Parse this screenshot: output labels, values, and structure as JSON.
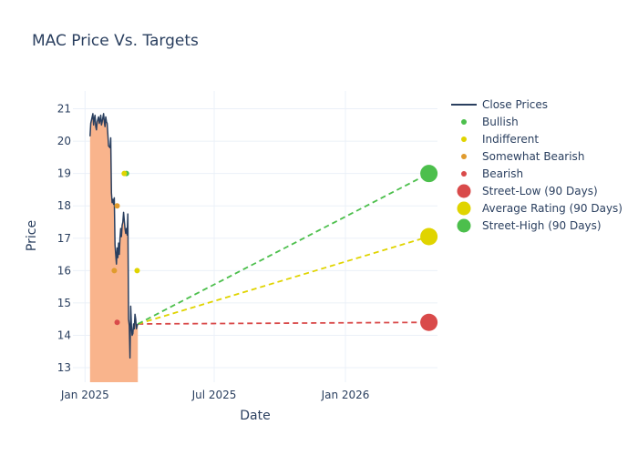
{
  "chart_data": {
    "type": "line",
    "title": "MAC Price Vs. Targets",
    "xlabel": "Date",
    "ylabel": "Price",
    "x_range": [
      "2024-12-15",
      "2026-05-10"
    ],
    "ylim": [
      12.55,
      21.55
    ],
    "y_ticks": [
      13,
      14,
      15,
      16,
      17,
      18,
      19,
      20,
      21
    ],
    "x_ticks": [
      {
        "date": "2025-01-01",
        "label": "Jan 2025"
      },
      {
        "date": "2025-07-01",
        "label": "Jul 2025"
      },
      {
        "date": "2026-01-01",
        "label": "Jan 2026"
      }
    ],
    "grid": true,
    "legend_position": "top-right",
    "close_prices": {
      "name": "Close Prices",
      "color": "#2a3f5f",
      "fill_color": "#f9b48c",
      "points": [
        [
          "2025-01-08",
          20.15
        ],
        [
          "2025-01-09",
          20.55
        ],
        [
          "2025-01-10",
          20.65
        ],
        [
          "2025-01-12",
          20.85
        ],
        [
          "2025-01-13",
          20.5
        ],
        [
          "2025-01-14",
          20.7
        ],
        [
          "2025-01-15",
          20.8
        ],
        [
          "2025-01-16",
          20.45
        ],
        [
          "2025-01-17",
          20.35
        ],
        [
          "2025-01-18",
          20.6
        ],
        [
          "2025-01-20",
          20.75
        ],
        [
          "2025-01-21",
          20.55
        ],
        [
          "2025-01-22",
          20.65
        ],
        [
          "2025-01-23",
          20.8
        ],
        [
          "2025-01-24",
          20.5
        ],
        [
          "2025-01-25",
          20.6
        ],
        [
          "2025-01-27",
          20.85
        ],
        [
          "2025-01-28",
          20.6
        ],
        [
          "2025-01-29",
          20.45
        ],
        [
          "2025-01-30",
          20.75
        ],
        [
          "2025-01-31",
          20.6
        ],
        [
          "2025-02-01",
          20.55
        ],
        [
          "2025-02-03",
          19.85
        ],
        [
          "2025-02-05",
          19.8
        ],
        [
          "2025-02-06",
          20.1
        ],
        [
          "2025-02-07",
          18.4
        ],
        [
          "2025-02-08",
          18.1
        ],
        [
          "2025-02-09",
          18.2
        ],
        [
          "2025-02-10",
          18.05
        ],
        [
          "2025-02-11",
          18.25
        ],
        [
          "2025-02-12",
          16.8
        ],
        [
          "2025-02-13",
          16.5
        ],
        [
          "2025-02-14",
          16.2
        ],
        [
          "2025-02-15",
          16.7
        ],
        [
          "2025-02-16",
          16.4
        ],
        [
          "2025-02-17",
          16.85
        ],
        [
          "2025-02-18",
          16.5
        ],
        [
          "2025-02-19",
          17.0
        ],
        [
          "2025-02-20",
          17.3
        ],
        [
          "2025-02-21",
          17.05
        ],
        [
          "2025-02-22",
          17.4
        ],
        [
          "2025-02-23",
          17.5
        ],
        [
          "2025-02-24",
          17.8
        ],
        [
          "2025-02-25",
          17.55
        ],
        [
          "2025-02-26",
          17.3
        ],
        [
          "2025-02-27",
          17.15
        ],
        [
          "2025-02-28",
          17.3
        ],
        [
          "2025-03-01",
          17.1
        ],
        [
          "2025-03-02",
          17.75
        ],
        [
          "2025-03-03",
          14.5
        ],
        [
          "2025-03-04",
          14.3
        ],
        [
          "2025-03-05",
          13.3
        ],
        [
          "2025-03-06",
          14.9
        ],
        [
          "2025-03-07",
          14.3
        ],
        [
          "2025-03-08",
          14.0
        ],
        [
          "2025-03-09",
          14.05
        ],
        [
          "2025-03-10",
          14.35
        ],
        [
          "2025-03-11",
          14.2
        ],
        [
          "2025-03-12",
          14.65
        ],
        [
          "2025-03-13",
          14.5
        ],
        [
          "2025-03-14",
          14.2
        ],
        [
          "2025-03-15",
          14.3
        ],
        [
          "2025-03-16",
          14.35
        ]
      ]
    },
    "analyst_ratings": [
      {
        "name": "Bullish",
        "color": "#4cbf4c",
        "points": [
          [
            "2025-02-28",
            19.0
          ]
        ]
      },
      {
        "name": "Indifferent",
        "color": "#e0d400",
        "points": [
          [
            "2025-02-25",
            19.0
          ],
          [
            "2025-03-15",
            16.0
          ]
        ]
      },
      {
        "name": "Somewhat Bearish",
        "color": "#e09b2e",
        "points": [
          [
            "2025-02-11",
            16.0
          ],
          [
            "2025-02-15",
            18.0
          ]
        ]
      },
      {
        "name": "Bearish",
        "color": "#d94a4a",
        "points": [
          [
            "2025-02-15",
            14.4
          ]
        ]
      }
    ],
    "targets_90_days": {
      "start_date": "2025-03-16",
      "start_value": 14.35,
      "end_date": "2026-04-28",
      "series": [
        {
          "name": "Street-Low (90 Days)",
          "color": "#d94a4a",
          "value": 14.4
        },
        {
          "name": "Average Rating (90 Days)",
          "color": "#e0d400",
          "value": 17.05
        },
        {
          "name": "Street-High (90 Days)",
          "color": "#4cbf4c",
          "value": 19.0
        }
      ]
    }
  }
}
